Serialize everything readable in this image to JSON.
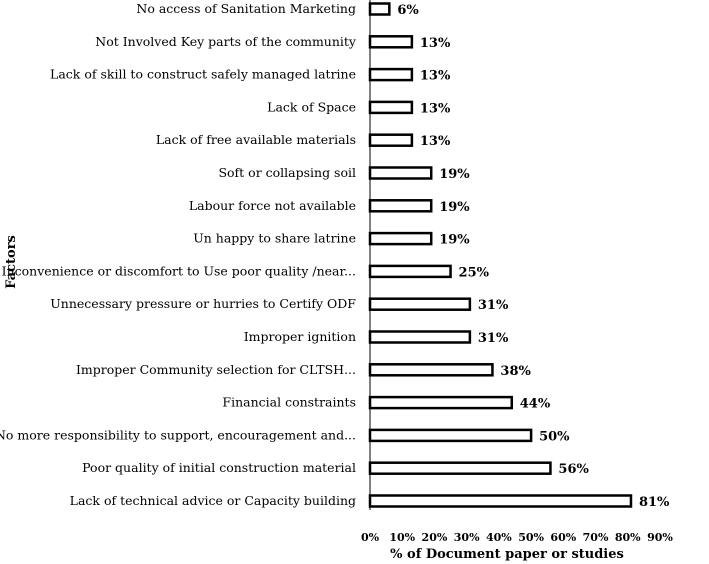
{
  "chart_data": {
    "type": "bar",
    "orientation": "horizontal",
    "title": "",
    "xlabel": "% of  Document paper or studies",
    "ylabel": "Factors",
    "xlim": [
      0,
      90
    ],
    "x_ticks": [
      "0%",
      "10%",
      "20%",
      "30%",
      "40%",
      "50%",
      "60%",
      "70%",
      "80%",
      "90%"
    ],
    "grid": false,
    "legend": "none",
    "bar_fill": "#ffffff",
    "bar_stroke": "#000000",
    "categories": [
      "No access of Sanitation Marketing",
      "Not Involved Key parts of the community",
      "Lack of skill to construct safely managed latrine",
      "Lack of Space",
      "Lack of free available  materials",
      "Soft or collapsing soil",
      "Labour force not available",
      "Un happy to share latrine",
      "Inconvenience or discomfort to Use poor quality /near...",
      "Unnecessary pressure or hurries to Certify ODF",
      "Improper ignition",
      "Improper Community selection for CLTSH...",
      "Financial constraints",
      "No more responsibility to support, encouragement and...",
      "Poor quality of initial construction material",
      "Lack of technical advice or Capacity building"
    ],
    "values": [
      6,
      13,
      13,
      13,
      13,
      19,
      19,
      19,
      25,
      31,
      31,
      38,
      44,
      50,
      56,
      81
    ],
    "value_labels": [
      "6%",
      "13%",
      "13%",
      "13%",
      "13%",
      "19%",
      "19%",
      "19%",
      "25%",
      "31%",
      "31%",
      "38%",
      "44%",
      "50%",
      "56%",
      "81%"
    ]
  }
}
